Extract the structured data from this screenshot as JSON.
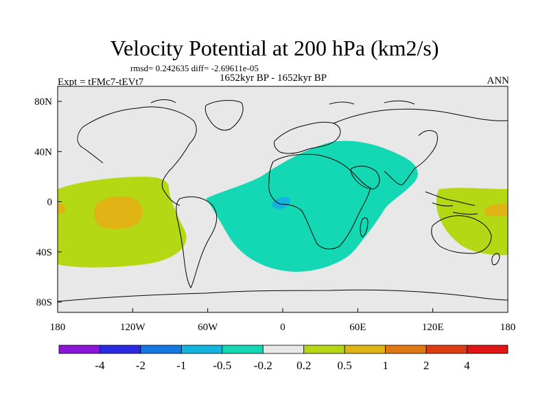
{
  "title": "Velocity Potential at 200 hPa (km2/s)",
  "stats": "rmsd= 0.242635 diff= -2.69611e-05",
  "experiment": "Expt = tFMc7-tEVt7",
  "period": "1652kyr BP - 1652kyr BP",
  "season": "ANN",
  "map": {
    "lon_ticks": [
      "180",
      "120W",
      "60W",
      "0",
      "60E",
      "120E",
      "180"
    ],
    "lat_ticks": [
      "80N",
      "40N",
      "0",
      "40S",
      "80S"
    ]
  },
  "colorbar": {
    "labels": [
      "-4",
      "-2",
      "-1",
      "-0.5",
      "-0.2",
      "0.2",
      "0.5",
      "1",
      "2",
      "4"
    ],
    "colors": [
      "#8a14d8",
      "#2a2ae0",
      "#1478e0",
      "#14b4e0",
      "#14d8b4",
      "#e8e8e8",
      "#b4d814",
      "#e0b414",
      "#e07814",
      "#e03c14",
      "#e01414"
    ]
  }
}
